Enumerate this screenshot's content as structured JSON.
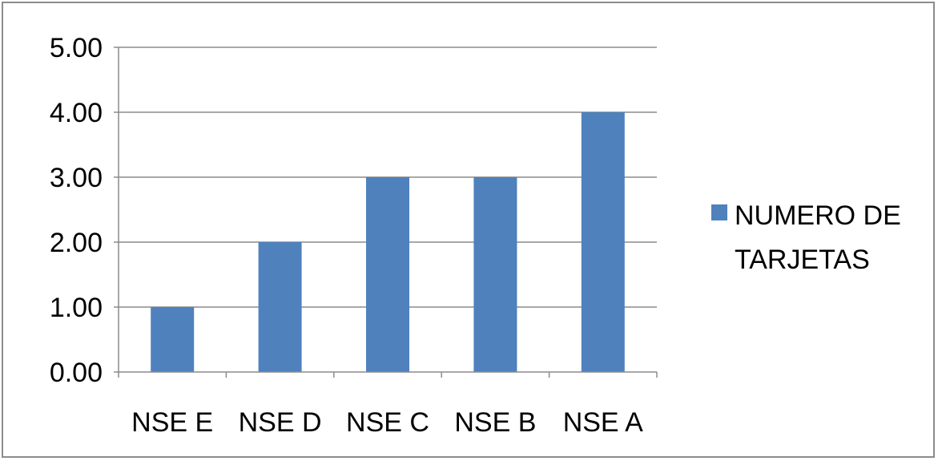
{
  "chart_data": {
    "type": "bar",
    "categories": [
      "NSE E",
      "NSE D",
      "NSE C",
      "NSE B",
      "NSE A"
    ],
    "series": [
      {
        "name": "NUMERO DE TARJETAS",
        "values": [
          1,
          2,
          3,
          3,
          4
        ],
        "color": "#4f81bd"
      }
    ],
    "ylim": [
      0,
      5
    ],
    "yticks": [
      "0.00",
      "1.00",
      "2.00",
      "3.00",
      "4.00",
      "5.00"
    ],
    "grid": true,
    "legend": {
      "placement": "right",
      "lines": [
        "NUMERO DE",
        "TARJETAS"
      ]
    },
    "title": "",
    "xlabel": "",
    "ylabel": ""
  }
}
